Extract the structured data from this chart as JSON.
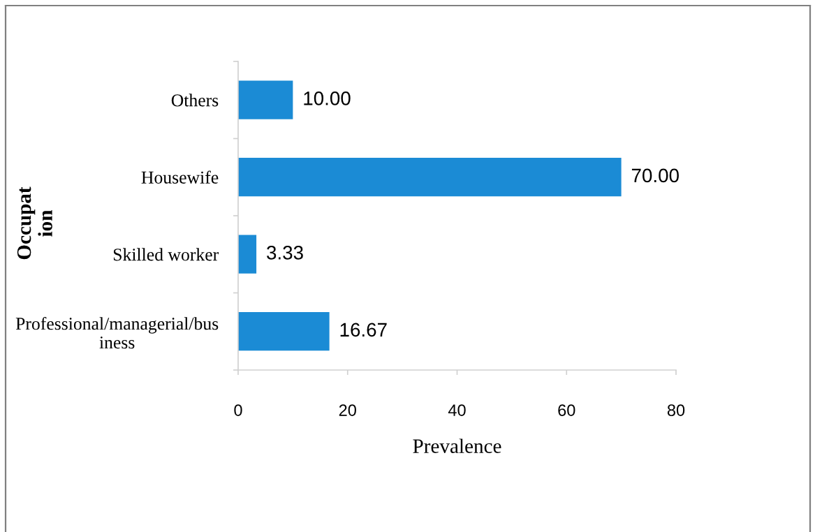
{
  "chart_data": {
    "type": "bar",
    "orientation": "horizontal",
    "xlabel": "Prevalence",
    "ylabel": "Occupat\nion",
    "categories": [
      "Others",
      "Housewife",
      "Skilled worker",
      "Professional/managerial/bus\niness"
    ],
    "values": [
      10.0,
      70.0,
      3.33,
      16.67
    ],
    "value_labels": [
      "10.00",
      "70.00",
      "3.33",
      "16.67"
    ],
    "color": "#1b8bd5",
    "xlim": [
      0,
      80
    ],
    "xticks": [
      0,
      20,
      40,
      60,
      80
    ]
  }
}
